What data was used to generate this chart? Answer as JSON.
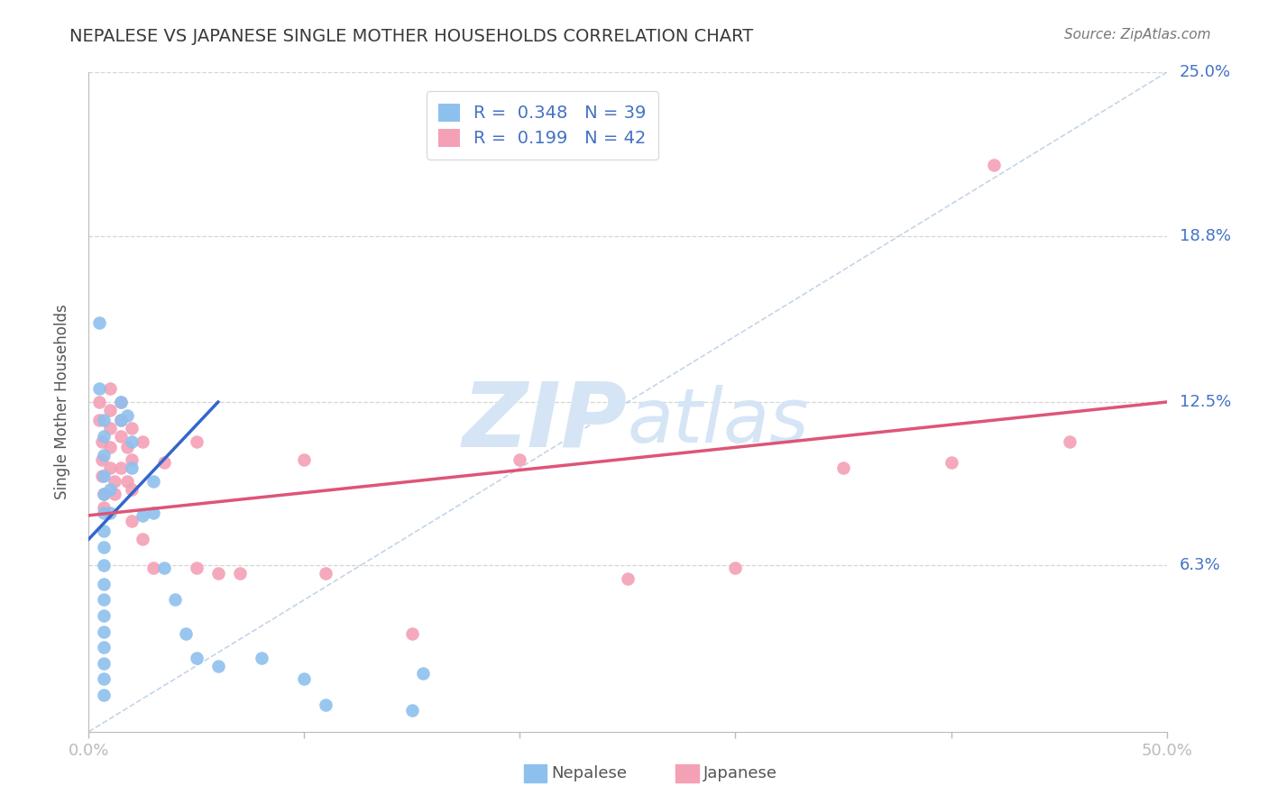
{
  "title": "NEPALESE VS JAPANESE SINGLE MOTHER HOUSEHOLDS CORRELATION CHART",
  "source": "Source: ZipAtlas.com",
  "ylabel": "Single Mother Households",
  "xlim": [
    0.0,
    0.5
  ],
  "ylim": [
    0.0,
    0.25
  ],
  "background_color": "#ffffff",
  "grid_color": "#cccccc",
  "title_color": "#3a3a3a",
  "axis_label_color": "#555555",
  "tick_label_color": "#4472c4",
  "nepalese_color": "#8ec0ee",
  "japanese_color": "#f4a0b5",
  "nepalese_line_color": "#3366cc",
  "japanese_line_color": "#dd5577",
  "R_nepalese": "0.348",
  "N_nepalese": "39",
  "R_japanese": "0.199",
  "N_japanese": "42",
  "nepalese_line": [
    [
      0.0,
      0.073
    ],
    [
      0.06,
      0.125
    ]
  ],
  "japanese_line": [
    [
      0.0,
      0.082
    ],
    [
      0.5,
      0.125
    ]
  ],
  "diagonal_line": [
    [
      0.0,
      0.0
    ],
    [
      0.5,
      0.25
    ]
  ],
  "nepalese_scatter": [
    [
      0.005,
      0.155
    ],
    [
      0.005,
      0.13
    ],
    [
      0.007,
      0.118
    ],
    [
      0.007,
      0.112
    ],
    [
      0.007,
      0.105
    ],
    [
      0.007,
      0.097
    ],
    [
      0.007,
      0.09
    ],
    [
      0.007,
      0.083
    ],
    [
      0.007,
      0.076
    ],
    [
      0.007,
      0.07
    ],
    [
      0.007,
      0.063
    ],
    [
      0.007,
      0.056
    ],
    [
      0.007,
      0.05
    ],
    [
      0.007,
      0.044
    ],
    [
      0.007,
      0.038
    ],
    [
      0.007,
      0.032
    ],
    [
      0.007,
      0.026
    ],
    [
      0.007,
      0.02
    ],
    [
      0.007,
      0.014
    ],
    [
      0.01,
      0.092
    ],
    [
      0.01,
      0.083
    ],
    [
      0.015,
      0.125
    ],
    [
      0.015,
      0.118
    ],
    [
      0.018,
      0.12
    ],
    [
      0.02,
      0.11
    ],
    [
      0.02,
      0.1
    ],
    [
      0.025,
      0.082
    ],
    [
      0.03,
      0.095
    ],
    [
      0.03,
      0.083
    ],
    [
      0.035,
      0.062
    ],
    [
      0.04,
      0.05
    ],
    [
      0.045,
      0.037
    ],
    [
      0.05,
      0.028
    ],
    [
      0.06,
      0.025
    ],
    [
      0.08,
      0.028
    ],
    [
      0.1,
      0.02
    ],
    [
      0.11,
      0.01
    ],
    [
      0.15,
      0.008
    ],
    [
      0.155,
      0.022
    ]
  ],
  "japanese_scatter": [
    [
      0.005,
      0.125
    ],
    [
      0.005,
      0.118
    ],
    [
      0.006,
      0.11
    ],
    [
      0.006,
      0.103
    ],
    [
      0.006,
      0.097
    ],
    [
      0.007,
      0.09
    ],
    [
      0.007,
      0.085
    ],
    [
      0.01,
      0.13
    ],
    [
      0.01,
      0.122
    ],
    [
      0.01,
      0.115
    ],
    [
      0.01,
      0.108
    ],
    [
      0.01,
      0.1
    ],
    [
      0.012,
      0.095
    ],
    [
      0.012,
      0.09
    ],
    [
      0.015,
      0.125
    ],
    [
      0.015,
      0.118
    ],
    [
      0.015,
      0.112
    ],
    [
      0.015,
      0.1
    ],
    [
      0.018,
      0.108
    ],
    [
      0.018,
      0.095
    ],
    [
      0.02,
      0.115
    ],
    [
      0.02,
      0.103
    ],
    [
      0.02,
      0.092
    ],
    [
      0.02,
      0.08
    ],
    [
      0.025,
      0.11
    ],
    [
      0.025,
      0.073
    ],
    [
      0.03,
      0.062
    ],
    [
      0.035,
      0.102
    ],
    [
      0.05,
      0.11
    ],
    [
      0.05,
      0.062
    ],
    [
      0.06,
      0.06
    ],
    [
      0.07,
      0.06
    ],
    [
      0.1,
      0.103
    ],
    [
      0.11,
      0.06
    ],
    [
      0.15,
      0.037
    ],
    [
      0.2,
      0.103
    ],
    [
      0.25,
      0.058
    ],
    [
      0.3,
      0.062
    ],
    [
      0.35,
      0.1
    ],
    [
      0.4,
      0.102
    ],
    [
      0.42,
      0.215
    ],
    [
      0.455,
      0.11
    ]
  ],
  "watermark_zip": "ZIP",
  "watermark_atlas": "atlas",
  "watermark_color": "#d5e5f5"
}
